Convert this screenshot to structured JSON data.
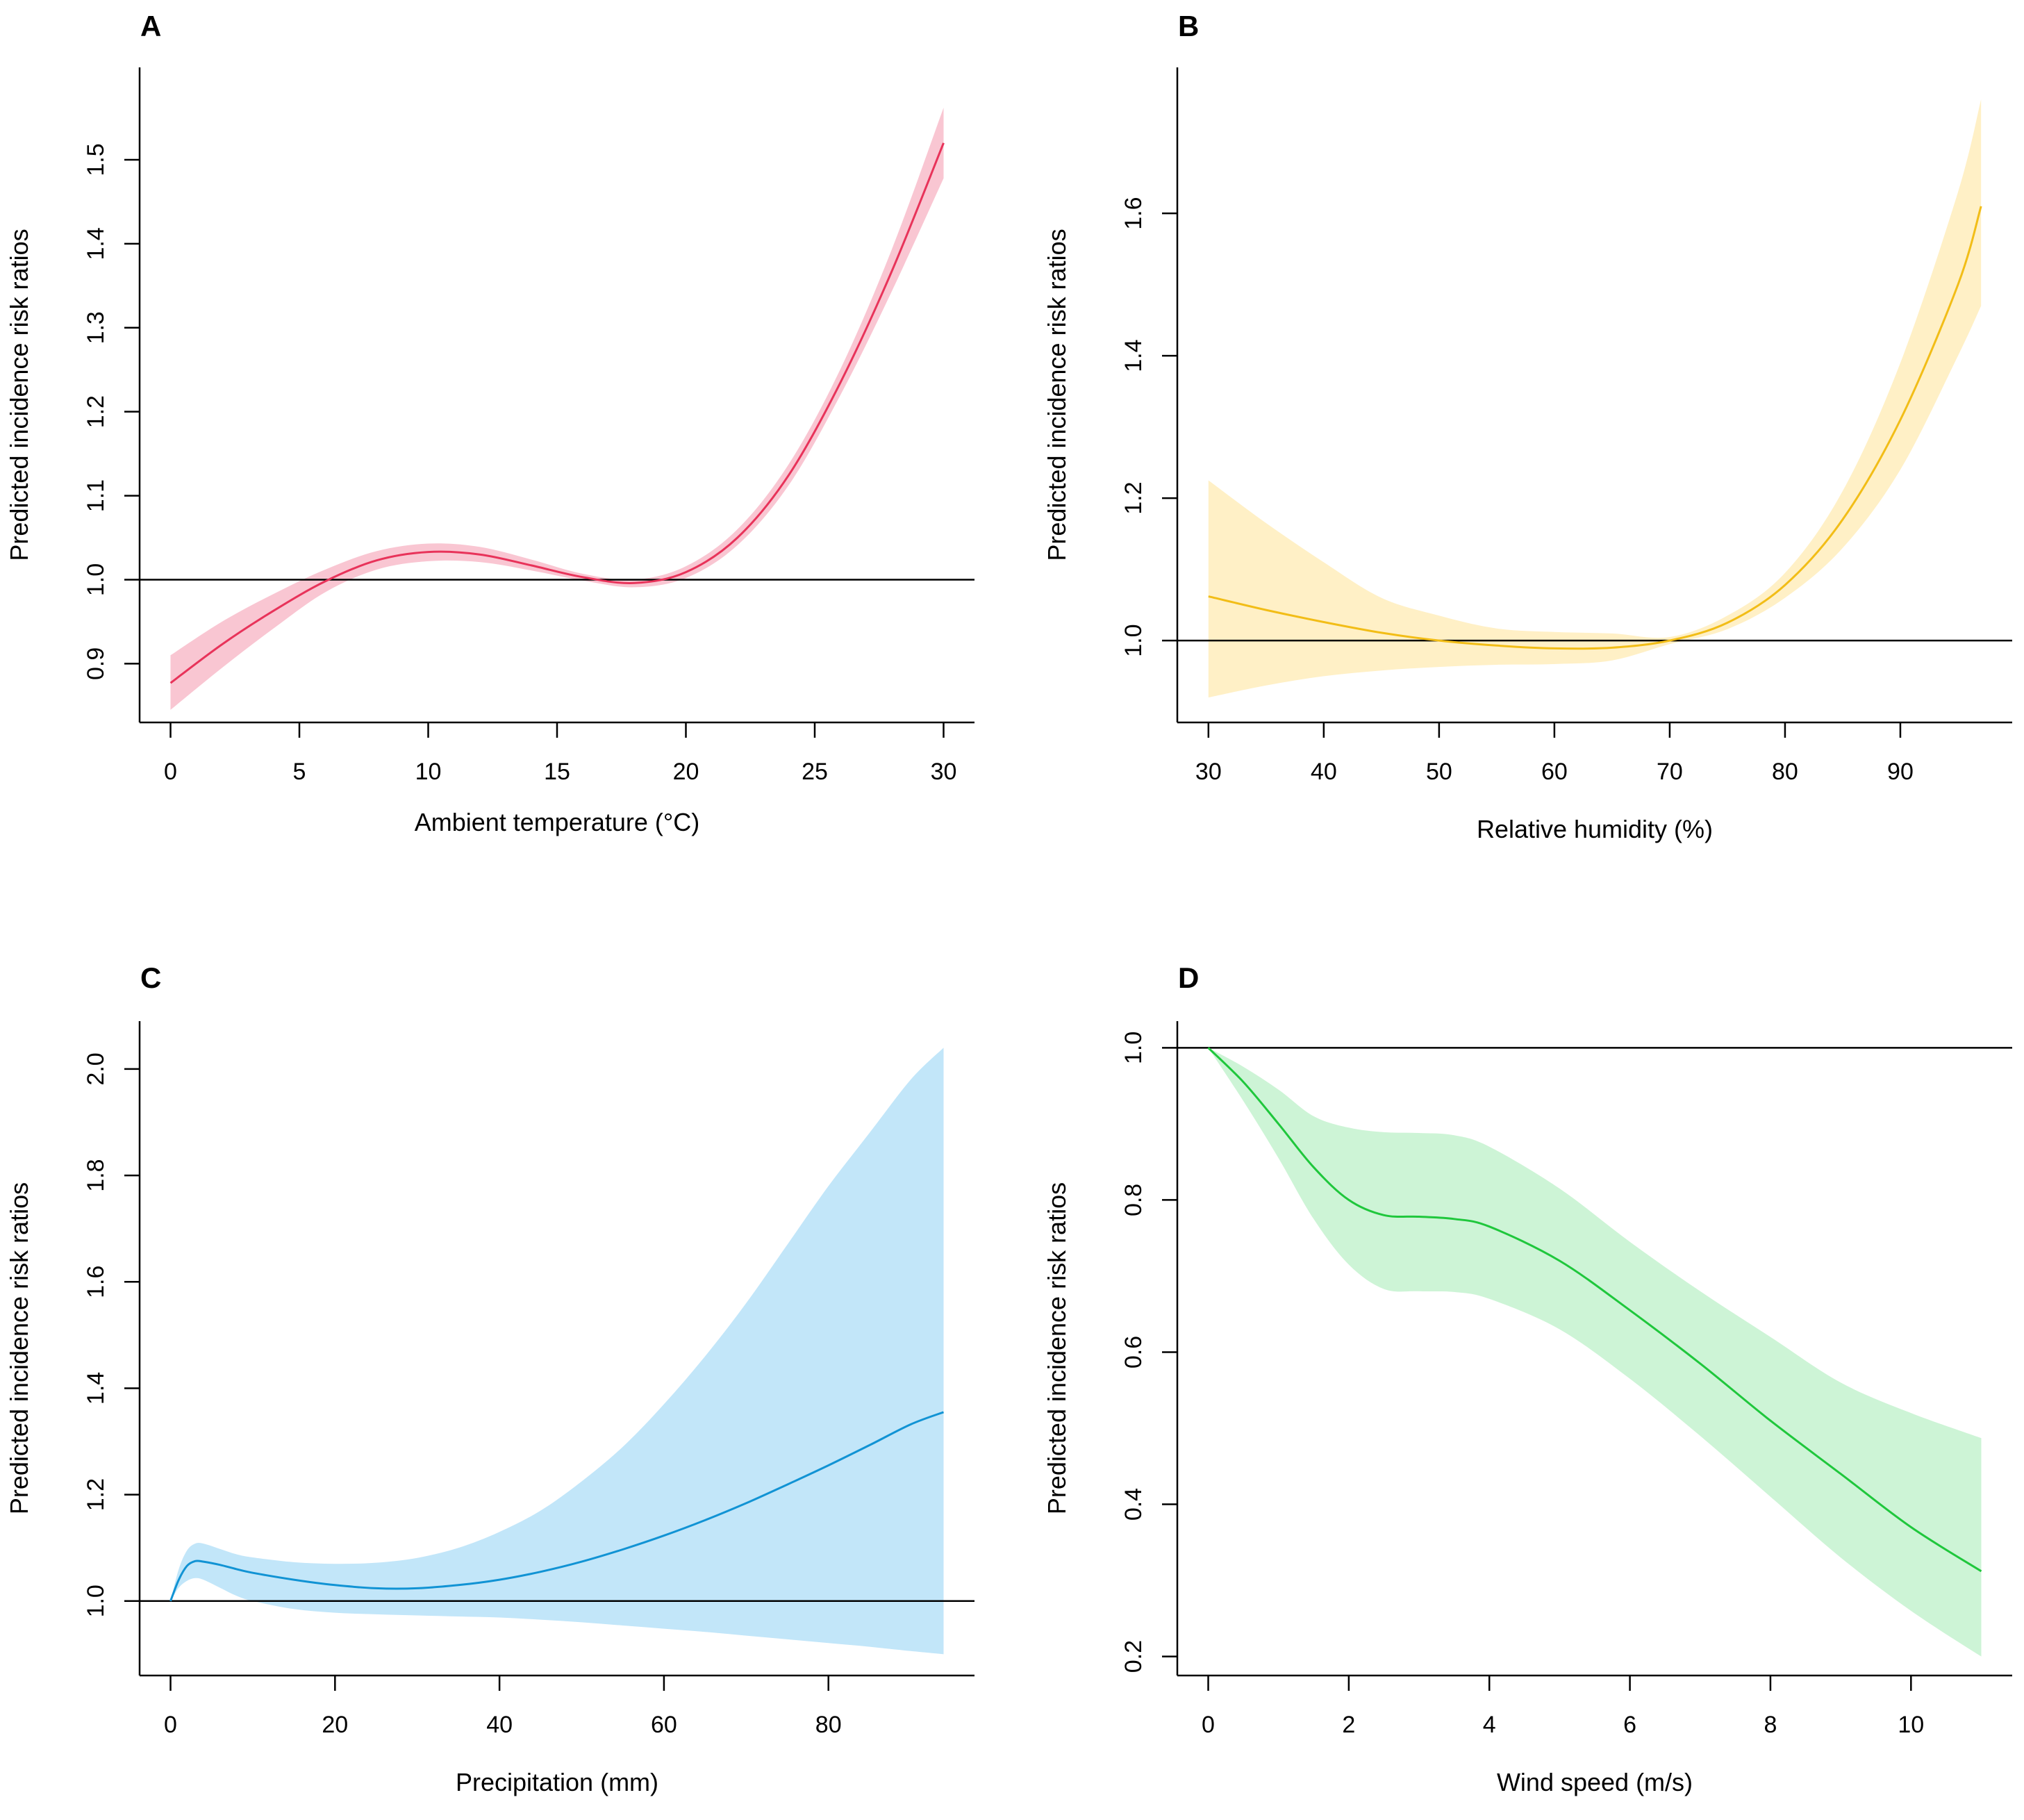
{
  "figure": {
    "background": "#ffffff"
  },
  "chart_data": [
    {
      "panel": "A",
      "type": "line",
      "xlabel": "Ambient temperature (°C)",
      "ylabel": "Predicted incidence risk ratios",
      "xlim": [
        -1.2,
        31.2
      ],
      "ylim": [
        0.83,
        1.61
      ],
      "xticks": [
        0,
        5,
        10,
        15,
        20,
        25,
        30
      ],
      "xtick_labels": [
        "0",
        "5",
        "10",
        "15",
        "20",
        "25",
        "30"
      ],
      "yticks": [
        0.9,
        1.0,
        1.1,
        1.2,
        1.3,
        1.4,
        1.5
      ],
      "ytick_labels": [
        "0.9",
        "1.0",
        "1.1",
        "1.2",
        "1.3",
        "1.4",
        "1.5"
      ],
      "reference_y": 1.0,
      "line_color": "#e8335a",
      "band_color": "#f9c6d2",
      "x": [
        0,
        2,
        4,
        6,
        8,
        10,
        12,
        14,
        16,
        18,
        20,
        22,
        24,
        26,
        28,
        30
      ],
      "y": [
        0.877,
        0.923,
        0.963,
        0.998,
        1.023,
        1.033,
        1.03,
        1.017,
        1.003,
        0.996,
        1.009,
        1.05,
        1.125,
        1.235,
        1.368,
        1.52
      ],
      "lower": [
        0.845,
        0.895,
        0.942,
        0.985,
        1.012,
        1.022,
        1.021,
        1.011,
        0.999,
        0.991,
        1.002,
        1.041,
        1.113,
        1.22,
        1.344,
        1.478
      ],
      "upper": [
        0.91,
        0.95,
        0.983,
        1.012,
        1.034,
        1.043,
        1.039,
        1.024,
        1.007,
        1.0,
        1.016,
        1.06,
        1.138,
        1.251,
        1.394,
        1.562
      ]
    },
    {
      "panel": "B",
      "type": "line",
      "xlabel": "Relative humidity (%)",
      "ylabel": "Predicted incidence risk ratios",
      "xlim": [
        27.3,
        99.7
      ],
      "ylim": [
        0.885,
        1.805
      ],
      "xticks": [
        30,
        40,
        50,
        60,
        70,
        80,
        90
      ],
      "xtick_labels": [
        "30",
        "40",
        "50",
        "60",
        "70",
        "80",
        "90"
      ],
      "yticks": [
        1.0,
        1.2,
        1.4,
        1.6
      ],
      "ytick_labels": [
        "1.0",
        "1.2",
        "1.4",
        "1.6"
      ],
      "reference_y": 1.0,
      "line_color": "#f2bd17",
      "band_color": "#fff0c6",
      "x": [
        30,
        35,
        40,
        45,
        50,
        55,
        60,
        65,
        70,
        75,
        80,
        85,
        90,
        95,
        97
      ],
      "y": [
        1.062,
        1.043,
        1.026,
        1.011,
        1.0,
        0.993,
        0.989,
        0.99,
        1.0,
        1.025,
        1.078,
        1.17,
        1.31,
        1.5,
        1.61
      ],
      "lower": [
        0.92,
        0.937,
        0.95,
        0.958,
        0.963,
        0.966,
        0.967,
        0.972,
        0.995,
        1.016,
        1.06,
        1.13,
        1.24,
        1.4,
        1.47
      ],
      "upper": [
        1.225,
        1.165,
        1.11,
        1.06,
        1.035,
        1.017,
        1.012,
        1.01,
        1.005,
        1.035,
        1.095,
        1.21,
        1.39,
        1.63,
        1.76
      ]
    },
    {
      "panel": "C",
      "type": "line",
      "xlabel": "Precipitation (mm)",
      "ylabel": "Predicted incidence risk ratios",
      "xlim": [
        -3.76,
        97.76
      ],
      "ylim": [
        0.86,
        2.09
      ],
      "xticks": [
        0,
        20,
        40,
        60,
        80
      ],
      "xtick_labels": [
        "0",
        "20",
        "40",
        "60",
        "80"
      ],
      "yticks": [
        1.0,
        1.2,
        1.4,
        1.6,
        1.8,
        2.0
      ],
      "ytick_labels": [
        "1.0",
        "1.2",
        "1.4",
        "1.6",
        "1.8",
        "2.0"
      ],
      "reference_y": 1.0,
      "line_color": "#1193d4",
      "band_color": "#c2e6f9",
      "x": [
        0,
        1,
        2,
        3,
        4,
        6,
        8,
        10,
        15,
        20,
        25,
        30,
        35,
        40,
        45,
        50,
        55,
        60,
        65,
        70,
        75,
        80,
        85,
        90,
        94
      ],
      "y": [
        1.0,
        1.04,
        1.066,
        1.075,
        1.074,
        1.068,
        1.06,
        1.053,
        1.04,
        1.03,
        1.024,
        1.024,
        1.03,
        1.04,
        1.055,
        1.074,
        1.097,
        1.123,
        1.152,
        1.184,
        1.219,
        1.255,
        1.293,
        1.332,
        1.355
      ],
      "lower": [
        1.0,
        1.025,
        1.038,
        1.043,
        1.04,
        1.025,
        1.01,
        1.0,
        0.985,
        0.978,
        0.975,
        0.973,
        0.971,
        0.969,
        0.965,
        0.96,
        0.954,
        0.948,
        0.942,
        0.935,
        0.928,
        0.921,
        0.914,
        0.906,
        0.9
      ],
      "upper": [
        1.0,
        1.06,
        1.095,
        1.108,
        1.108,
        1.098,
        1.088,
        1.082,
        1.073,
        1.07,
        1.072,
        1.081,
        1.1,
        1.13,
        1.17,
        1.225,
        1.29,
        1.37,
        1.46,
        1.56,
        1.67,
        1.78,
        1.88,
        1.98,
        2.04
      ]
    },
    {
      "panel": "D",
      "type": "line",
      "xlabel": "Wind speed (m/s)",
      "ylabel": "Predicted incidence risk ratios",
      "xlim": [
        -0.44,
        11.44
      ],
      "ylim": [
        0.175,
        1.035
      ],
      "xticks": [
        0,
        2,
        4,
        6,
        8,
        10
      ],
      "xtick_labels": [
        "0",
        "2",
        "4",
        "6",
        "8",
        "10"
      ],
      "yticks": [
        0.2,
        0.4,
        0.6,
        0.8,
        1.0
      ],
      "ytick_labels": [
        "0.2",
        "0.4",
        "0.6",
        "0.8",
        "1.0"
      ],
      "reference_y": 1.0,
      "line_color": "#1fc73c",
      "band_color": "#cdf4d6",
      "x": [
        0,
        0.5,
        1,
        1.5,
        2,
        2.5,
        3,
        3.5,
        4,
        5,
        6,
        7,
        8,
        9,
        10,
        11
      ],
      "y": [
        1.0,
        0.955,
        0.9,
        0.843,
        0.8,
        0.78,
        0.778,
        0.775,
        0.765,
        0.72,
        0.655,
        0.585,
        0.51,
        0.44,
        0.37,
        0.312
      ],
      "lower": [
        1.0,
        0.93,
        0.855,
        0.775,
        0.715,
        0.683,
        0.68,
        0.679,
        0.67,
        0.63,
        0.565,
        0.49,
        0.41,
        0.33,
        0.26,
        0.2
      ],
      "upper": [
        1.0,
        0.975,
        0.945,
        0.91,
        0.895,
        0.889,
        0.888,
        0.885,
        0.87,
        0.815,
        0.745,
        0.68,
        0.62,
        0.56,
        0.52,
        0.487
      ]
    }
  ]
}
